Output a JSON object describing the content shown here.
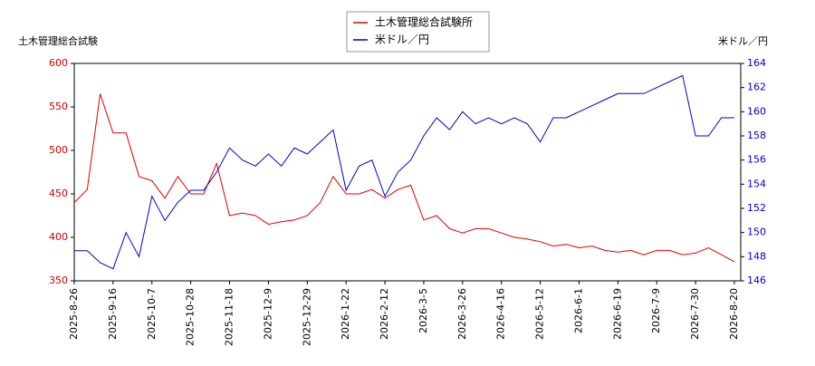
{
  "chart_data": {
    "type": "line",
    "y_label": "土木管理総合試験",
    "y2_label": "米ドル／円",
    "categories": [
      "2025-8-26",
      null,
      null,
      "2025-9-16",
      null,
      null,
      "2025-10-7",
      null,
      null,
      "2025-10-28",
      null,
      null,
      "2025-11-18",
      null,
      null,
      "2025-12-9",
      null,
      null,
      "2025-12-29",
      null,
      null,
      "2026-1-22",
      null,
      null,
      "2026-2-12",
      null,
      null,
      "2026-3-5",
      null,
      null,
      "2026-3-26",
      null,
      null,
      "2026-4-16",
      null,
      null,
      "2026-5-12",
      null,
      null,
      "2026-6-1",
      null,
      null,
      "2026-6-19",
      null,
      null,
      "2026-7-9",
      null,
      null,
      "2026-7-30",
      null,
      null,
      "2026-8-20"
    ],
    "series": [
      {
        "name": "土木管理総合試験所",
        "color": "#dd0000",
        "axis": "y",
        "values": [
          440,
          455,
          565,
          520,
          520,
          470,
          465,
          445,
          470,
          450,
          450,
          485,
          425,
          428,
          425,
          415,
          418,
          420,
          425,
          440,
          470,
          450,
          450,
          455,
          445,
          455,
          460,
          420,
          425,
          410,
          405,
          410,
          410,
          405,
          400,
          398,
          395,
          390,
          392,
          388,
          390,
          385,
          383,
          385,
          380,
          385,
          385,
          380,
          382,
          388,
          380,
          372
        ]
      },
      {
        "name": "米ドル／円",
        "color": "#0000cc",
        "axis": "y2",
        "values": [
          148.5,
          148.5,
          147.5,
          147,
          150,
          148,
          153,
          151,
          152.5,
          153.5,
          153.5,
          155,
          157,
          156,
          155.5,
          156.5,
          155.5,
          157,
          156.5,
          157.5,
          158.5,
          153.5,
          155.5,
          156,
          153,
          155,
          156,
          158,
          159.5,
          158.5,
          160,
          159,
          159.5,
          159,
          159.5,
          159,
          157.5,
          159.5,
          159.5,
          160,
          160.5,
          161,
          161.5,
          161.5,
          161.5,
          162,
          162.5,
          163,
          158,
          158,
          159.5,
          159.5
        ]
      }
    ],
    "ylim": [
      350,
      600
    ],
    "yticks": [
      350,
      400,
      450,
      500,
      550,
      600
    ],
    "y2lim": [
      146,
      164
    ],
    "y2ticks": [
      146,
      148,
      150,
      152,
      154,
      156,
      158,
      160,
      162,
      164
    ],
    "grid": false
  }
}
